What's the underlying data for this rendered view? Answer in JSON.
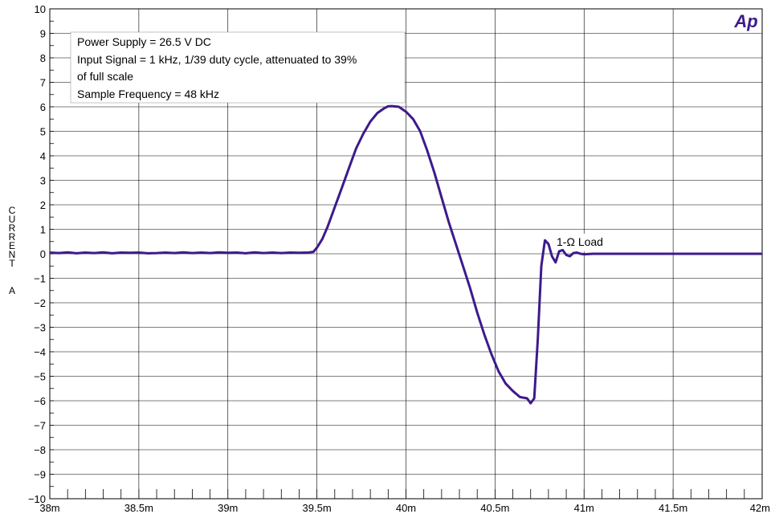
{
  "chart_data": {
    "type": "line",
    "title": "",
    "xlabel": "",
    "ylabel": "CURRENT A",
    "ylabel_letters": [
      "C",
      "U",
      "R",
      "R",
      "E",
      "N",
      "T"
    ],
    "ylabel_unit": "A",
    "xlim": [
      0.038,
      0.042
    ],
    "ylim": [
      -10,
      10
    ],
    "grid": true,
    "x_ticks": [
      {
        "value": 0.038,
        "label": "38m"
      },
      {
        "value": 0.0385,
        "label": "38.5m"
      },
      {
        "value": 0.039,
        "label": "39m"
      },
      {
        "value": 0.0395,
        "label": "39.5m"
      },
      {
        "value": 0.04,
        "label": "40m"
      },
      {
        "value": 0.0405,
        "label": "40.5m"
      },
      {
        "value": 0.041,
        "label": "41m"
      },
      {
        "value": 0.0415,
        "label": "41.5m"
      },
      {
        "value": 0.042,
        "label": "42m"
      }
    ],
    "y_ticks": [
      {
        "value": 10,
        "label": "10"
      },
      {
        "value": 9,
        "label": "9"
      },
      {
        "value": 8,
        "label": "8"
      },
      {
        "value": 7,
        "label": "7"
      },
      {
        "value": 6,
        "label": "6"
      },
      {
        "value": 5,
        "label": "5"
      },
      {
        "value": 4,
        "label": "4"
      },
      {
        "value": 3,
        "label": "3"
      },
      {
        "value": 2,
        "label": "2"
      },
      {
        "value": 1,
        "label": "1"
      },
      {
        "value": 0,
        "label": "0"
      },
      {
        "value": -1,
        "label": "−1"
      },
      {
        "value": -2,
        "label": "−2"
      },
      {
        "value": -3,
        "label": "−3"
      },
      {
        "value": -4,
        "label": "−4"
      },
      {
        "value": -5,
        "label": "−5"
      },
      {
        "value": -6,
        "label": "−6"
      },
      {
        "value": -7,
        "label": "−7"
      },
      {
        "value": -8,
        "label": "−8"
      },
      {
        "value": -9,
        "label": "−9"
      },
      {
        "value": -10,
        "label": "−10"
      }
    ],
    "annotation_lines": [
      "Power Supply = 26.5 V DC",
      "Input Signal = 1 kHz, 1/39 duty cycle, attenuated to 39%",
      "of full scale",
      "Sample Frequency = 48 kHz"
    ],
    "series_label": "1-Ω Load",
    "logo_text": "Ap",
    "series": [
      {
        "name": "1-Ω Load",
        "color": "#3d1a8c",
        "points": [
          [
            0.038,
            0.05
          ],
          [
            0.03805,
            0.03
          ],
          [
            0.0381,
            0.06
          ],
          [
            0.03815,
            0.02
          ],
          [
            0.0382,
            0.05
          ],
          [
            0.03825,
            0.03
          ],
          [
            0.0383,
            0.06
          ],
          [
            0.03835,
            0.02
          ],
          [
            0.0384,
            0.05
          ],
          [
            0.03845,
            0.04
          ],
          [
            0.0385,
            0.05
          ],
          [
            0.03855,
            0.02
          ],
          [
            0.0386,
            0.03
          ],
          [
            0.03865,
            0.05
          ],
          [
            0.0387,
            0.03
          ],
          [
            0.03875,
            0.06
          ],
          [
            0.0388,
            0.03
          ],
          [
            0.03885,
            0.05
          ],
          [
            0.0389,
            0.03
          ],
          [
            0.03895,
            0.06
          ],
          [
            0.039,
            0.04
          ],
          [
            0.03905,
            0.05
          ],
          [
            0.0391,
            0.02
          ],
          [
            0.03915,
            0.06
          ],
          [
            0.0392,
            0.03
          ],
          [
            0.03925,
            0.05
          ],
          [
            0.0393,
            0.03
          ],
          [
            0.03935,
            0.05
          ],
          [
            0.0394,
            0.04
          ],
          [
            0.03945,
            0.05
          ],
          [
            0.03948,
            0.08
          ],
          [
            0.0395,
            0.25
          ],
          [
            0.03953,
            0.6
          ],
          [
            0.03956,
            1.1
          ],
          [
            0.0396,
            1.9
          ],
          [
            0.03964,
            2.7
          ],
          [
            0.03968,
            3.5
          ],
          [
            0.03972,
            4.3
          ],
          [
            0.03976,
            4.9
          ],
          [
            0.0398,
            5.4
          ],
          [
            0.03984,
            5.75
          ],
          [
            0.03988,
            5.95
          ],
          [
            0.03992,
            6.03
          ],
          [
            0.03996,
            6.0
          ],
          [
            0.0399,
            6.02
          ],
          [
            0.04,
            5.8
          ],
          [
            0.04004,
            5.5
          ],
          [
            0.04008,
            5.0
          ],
          [
            0.04012,
            4.2
          ],
          [
            0.04016,
            3.3
          ],
          [
            0.0402,
            2.3
          ],
          [
            0.04024,
            1.3
          ],
          [
            0.04028,
            0.4
          ],
          [
            0.04032,
            -0.5
          ],
          [
            0.04036,
            -1.4
          ],
          [
            0.0404,
            -2.4
          ],
          [
            0.04044,
            -3.3
          ],
          [
            0.04048,
            -4.1
          ],
          [
            0.04052,
            -4.8
          ],
          [
            0.04056,
            -5.3
          ],
          [
            0.0406,
            -5.6
          ],
          [
            0.04064,
            -5.85
          ],
          [
            0.04068,
            -5.9
          ],
          [
            0.0407,
            -6.1
          ],
          [
            0.04072,
            -5.9
          ],
          [
            0.04074,
            -3.5
          ],
          [
            0.04076,
            -0.5
          ],
          [
            0.04078,
            0.55
          ],
          [
            0.0408,
            0.4
          ],
          [
            0.04082,
            -0.1
          ],
          [
            0.04084,
            -0.35
          ],
          [
            0.04086,
            0.1
          ],
          [
            0.04088,
            0.15
          ],
          [
            0.0409,
            -0.05
          ],
          [
            0.04092,
            -0.1
          ],
          [
            0.04094,
            0.03
          ],
          [
            0.04096,
            0.05
          ],
          [
            0.04098,
            0.0
          ],
          [
            0.041,
            -0.02
          ],
          [
            0.04105,
            0.0
          ],
          [
            0.0411,
            0.0
          ],
          [
            0.0415,
            0.0
          ],
          [
            0.042,
            0.0
          ]
        ]
      }
    ]
  }
}
